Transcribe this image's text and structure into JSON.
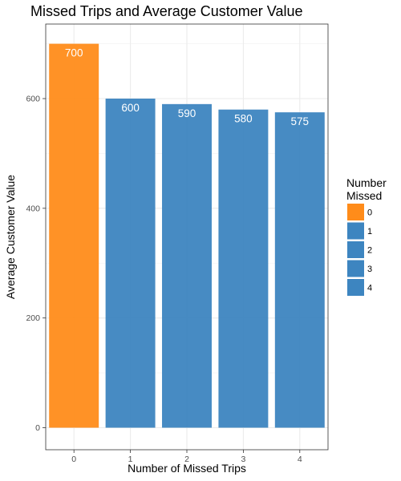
{
  "chart_data": {
    "type": "bar",
    "title": "Missed Trips and Average Customer Value",
    "xlabel": "Number of Missed Trips",
    "ylabel": "Average Customer Value",
    "categories": [
      "0",
      "1",
      "2",
      "3",
      "4"
    ],
    "values": [
      700,
      600,
      590,
      580,
      575
    ],
    "data_labels": [
      "700",
      "600",
      "590",
      "580",
      "575"
    ],
    "bar_colors": [
      "#ff8c1a",
      "#3d85c0",
      "#3d85c0",
      "#3d85c0",
      "#3d85c0"
    ],
    "ylim": [
      0,
      730
    ],
    "yticks": [
      0,
      200,
      400,
      600
    ],
    "ytick_labels": [
      "0",
      "200",
      "400",
      "600"
    ],
    "grid": true,
    "legend": {
      "title_lines": [
        "Number",
        "Missed"
      ],
      "placement": "right",
      "items": [
        {
          "label": "0",
          "color": "#ff8c1a"
        },
        {
          "label": "1",
          "color": "#3d85c0"
        },
        {
          "label": "2",
          "color": "#3d85c0"
        },
        {
          "label": "3",
          "color": "#3d85c0"
        },
        {
          "label": "4",
          "color": "#3d85c0"
        }
      ]
    }
  }
}
